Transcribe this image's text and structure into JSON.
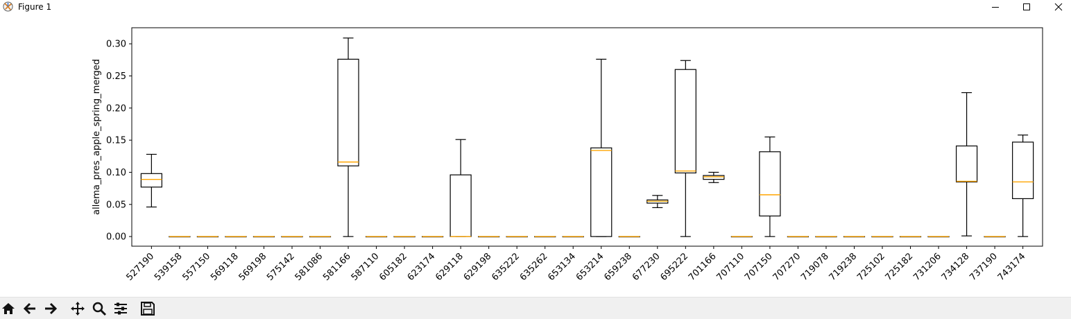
{
  "window": {
    "title": "Figure 1"
  },
  "toolbar": {
    "buttons": [
      {
        "name": "home-icon"
      },
      {
        "name": "back-arrow-icon"
      },
      {
        "name": "forward-arrow-icon"
      },
      {
        "name": "pan-icon"
      },
      {
        "name": "zoom-icon"
      },
      {
        "name": "configure-subplots-icon"
      },
      {
        "name": "save-icon"
      }
    ]
  },
  "colors": {
    "median": "#ffa500",
    "box": "#000000",
    "background": "#ffffff"
  },
  "chart_data": {
    "type": "box",
    "ylabel": "allema_pres_apple_spring_merged",
    "xlabel": "",
    "ylim": [
      -0.015,
      0.325
    ],
    "yticks": [
      "0.00",
      "0.05",
      "0.10",
      "0.15",
      "0.20",
      "0.25",
      "0.30"
    ],
    "grid": false,
    "categories": [
      "527190",
      "539158",
      "557150",
      "569118",
      "569198",
      "575142",
      "581086",
      "581166",
      "587110",
      "605182",
      "623174",
      "629118",
      "629198",
      "635222",
      "635262",
      "653134",
      "653214",
      "659238",
      "677230",
      "695222",
      "701166",
      "707110",
      "707150",
      "707270",
      "719078",
      "719238",
      "725102",
      "725182",
      "731206",
      "734128",
      "737190",
      "743174"
    ],
    "boxes": [
      {
        "min": 0.046,
        "q1": 0.077,
        "median": 0.089,
        "q3": 0.098,
        "max": 0.128
      },
      {
        "min": 0,
        "q1": 0,
        "median": 0,
        "q3": 0,
        "max": 0
      },
      {
        "min": 0,
        "q1": 0,
        "median": 0,
        "q3": 0,
        "max": 0
      },
      {
        "min": 0,
        "q1": 0,
        "median": 0,
        "q3": 0,
        "max": 0
      },
      {
        "min": 0,
        "q1": 0,
        "median": 0,
        "q3": 0,
        "max": 0
      },
      {
        "min": 0,
        "q1": 0,
        "median": 0,
        "q3": 0,
        "max": 0
      },
      {
        "min": 0,
        "q1": 0,
        "median": 0,
        "q3": 0,
        "max": 0
      },
      {
        "min": 0,
        "q1": 0.11,
        "median": 0.116,
        "q3": 0.276,
        "max": 0.309
      },
      {
        "min": 0,
        "q1": 0,
        "median": 0,
        "q3": 0,
        "max": 0
      },
      {
        "min": 0,
        "q1": 0,
        "median": 0,
        "q3": 0,
        "max": 0
      },
      {
        "min": 0,
        "q1": 0,
        "median": 0,
        "q3": 0,
        "max": 0
      },
      {
        "min": 0,
        "q1": 0,
        "median": 0,
        "q3": 0.096,
        "max": 0.151
      },
      {
        "min": 0,
        "q1": 0,
        "median": 0,
        "q3": 0,
        "max": 0
      },
      {
        "min": 0,
        "q1": 0,
        "median": 0,
        "q3": 0,
        "max": 0
      },
      {
        "min": 0,
        "q1": 0,
        "median": 0,
        "q3": 0,
        "max": 0
      },
      {
        "min": 0,
        "q1": 0,
        "median": 0,
        "q3": 0,
        "max": 0
      },
      {
        "min": 0,
        "q1": 0,
        "median": 0.134,
        "q3": 0.138,
        "max": 0.276
      },
      {
        "min": 0,
        "q1": 0,
        "median": 0,
        "q3": 0,
        "max": 0
      },
      {
        "min": 0.045,
        "q1": 0.052,
        "median": 0.055,
        "q3": 0.057,
        "max": 0.064
      },
      {
        "min": 0,
        "q1": 0.099,
        "median": 0.102,
        "q3": 0.26,
        "max": 0.274
      },
      {
        "min": 0.084,
        "q1": 0.089,
        "median": 0.093,
        "q3": 0.095,
        "max": 0.1
      },
      {
        "min": 0,
        "q1": 0,
        "median": 0,
        "q3": 0,
        "max": 0
      },
      {
        "min": 0,
        "q1": 0.032,
        "median": 0.065,
        "q3": 0.132,
        "max": 0.155
      },
      {
        "min": 0,
        "q1": 0,
        "median": 0,
        "q3": 0,
        "max": 0
      },
      {
        "min": 0,
        "q1": 0,
        "median": 0,
        "q3": 0,
        "max": 0
      },
      {
        "min": 0,
        "q1": 0,
        "median": 0,
        "q3": 0,
        "max": 0
      },
      {
        "min": 0,
        "q1": 0,
        "median": 0,
        "q3": 0,
        "max": 0
      },
      {
        "min": 0,
        "q1": 0,
        "median": 0,
        "q3": 0,
        "max": 0
      },
      {
        "min": 0,
        "q1": 0,
        "median": 0,
        "q3": 0,
        "max": 0
      },
      {
        "min": 0.001,
        "q1": 0.085,
        "median": 0.086,
        "q3": 0.141,
        "max": 0.224
      },
      {
        "min": 0,
        "q1": 0,
        "median": 0,
        "q3": 0,
        "max": 0
      },
      {
        "min": 0,
        "q1": 0.059,
        "median": 0.085,
        "q3": 0.147,
        "max": 0.158
      }
    ]
  }
}
